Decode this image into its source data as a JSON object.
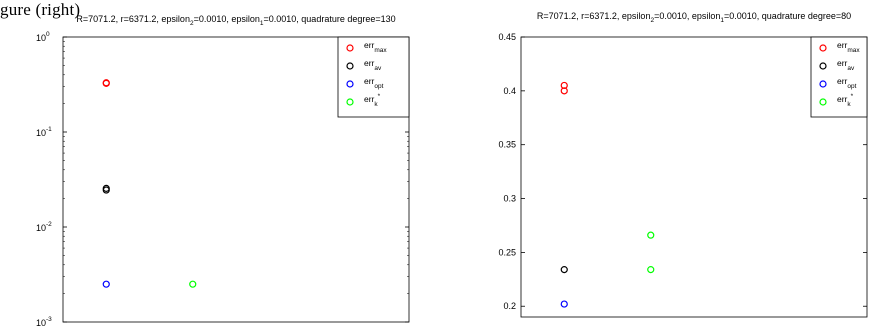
{
  "caption_fragment": "gure (right)",
  "chart_data": [
    {
      "type": "scatter",
      "yscale": "log",
      "title_parts": [
        {
          "t": "R=7071.2, r=6371.2, epsilon"
        },
        {
          "t": "2",
          "sub": true
        },
        {
          "t": "=0.0010, epsilon"
        },
        {
          "t": "1",
          "sub": true
        },
        {
          "t": "=0.0010, quadrature degree=130"
        }
      ],
      "ylim": [
        0.001,
        1
      ],
      "yticks": [
        {
          "value": 1,
          "base": "10",
          "exp": "0"
        },
        {
          "value": 0.1,
          "base": "10",
          "exp": "-1"
        },
        {
          "value": 0.01,
          "base": "10",
          "exp": "-2"
        },
        {
          "value": 0.001,
          "base": "10",
          "exp": "-3"
        }
      ],
      "xlim": [
        0.5,
        4.5
      ],
      "grid": false,
      "legend_position": "top-right",
      "series": [
        {
          "name": "err",
          "sub": "max",
          "color": "#ff0000",
          "x": [
            1,
            1
          ],
          "y": [
            0.325,
            0.33
          ]
        },
        {
          "name": "err",
          "sub": "av",
          "color": "#000000",
          "x": [
            1,
            1
          ],
          "y": [
            0.0245,
            0.0255
          ]
        },
        {
          "name": "err",
          "sub": "opt",
          "color": "#0000ff",
          "x": [
            1
          ],
          "y": [
            0.0025
          ]
        },
        {
          "name": "err",
          "sub": "k",
          "sup": "*",
          "color": "#00ff00",
          "x": [
            2
          ],
          "y": [
            0.0025
          ]
        }
      ]
    },
    {
      "type": "scatter",
      "yscale": "linear",
      "title_parts": [
        {
          "t": "R=7071.2, r=6371.2, epsilon"
        },
        {
          "t": "2",
          "sub": true
        },
        {
          "t": "=0.0010, epsilon"
        },
        {
          "t": "1",
          "sub": true
        },
        {
          "t": "=0.0010, quadrature degree=80"
        }
      ],
      "ylim": [
        0.19,
        0.45
      ],
      "yticks": [
        {
          "value": 0.45,
          "label": "0.45"
        },
        {
          "value": 0.4,
          "label": "0.4"
        },
        {
          "value": 0.35,
          "label": "0.35"
        },
        {
          "value": 0.3,
          "label": "0.3"
        },
        {
          "value": 0.25,
          "label": "0.25"
        },
        {
          "value": 0.2,
          "label": "0.2"
        }
      ],
      "xlim": [
        0.5,
        4.5
      ],
      "grid": false,
      "legend_position": "top-right",
      "series": [
        {
          "name": "err",
          "sub": "max",
          "color": "#ff0000",
          "x": [
            1,
            1
          ],
          "y": [
            0.405,
            0.4
          ]
        },
        {
          "name": "err",
          "sub": "av",
          "color": "#000000",
          "x": [
            1
          ],
          "y": [
            0.234
          ]
        },
        {
          "name": "err",
          "sub": "opt",
          "color": "#0000ff",
          "x": [
            1
          ],
          "y": [
            0.202
          ]
        },
        {
          "name": "err",
          "sub": "k",
          "sup": "*",
          "color": "#00ff00",
          "x": [
            2,
            2
          ],
          "y": [
            0.266,
            0.234
          ]
        }
      ]
    }
  ]
}
